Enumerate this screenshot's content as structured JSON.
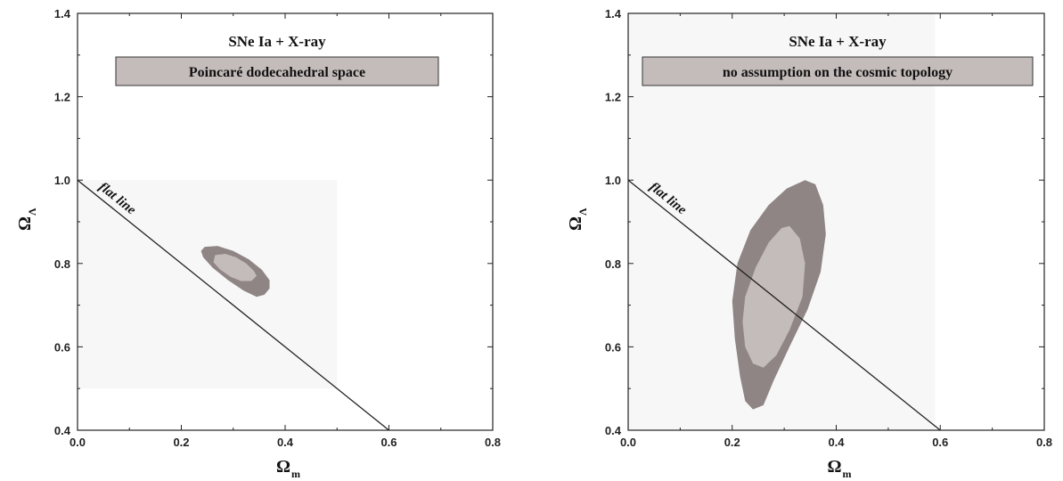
{
  "chart_data": [
    {
      "type": "contour",
      "title": "SNe Ia + X-ray",
      "box_label": "Poincaré dodecahedral space",
      "xlabel": "Ω",
      "xlabel_sub": "m",
      "ylabel": "Ω",
      "ylabel_sub": "Λ",
      "xlim": [
        0.0,
        0.8
      ],
      "ylim": [
        0.4,
        1.4
      ],
      "xticks": [
        "0.0",
        "0.2",
        "0.4",
        "0.6",
        "0.8"
      ],
      "yticks": [
        "0.4",
        "0.6",
        "0.8",
        "1.0",
        "1.2",
        "1.4"
      ],
      "prior_region": {
        "x": [
          0.0,
          0.5
        ],
        "y": [
          0.5,
          1.0
        ]
      },
      "flat_line": {
        "label": "flat line",
        "points": [
          [
            0.0,
            1.0
          ],
          [
            0.6,
            0.4
          ]
        ]
      },
      "contours": [
        {
          "level": "outer",
          "color": "#8f8585",
          "points": [
            [
              0.245,
              0.84
            ],
            [
              0.27,
              0.842
            ],
            [
              0.3,
              0.83
            ],
            [
              0.33,
              0.81
            ],
            [
              0.355,
              0.785
            ],
            [
              0.37,
              0.76
            ],
            [
              0.37,
              0.74
            ],
            [
              0.36,
              0.725
            ],
            [
              0.345,
              0.72
            ],
            [
              0.32,
              0.735
            ],
            [
              0.29,
              0.76
            ],
            [
              0.26,
              0.79
            ],
            [
              0.242,
              0.815
            ],
            [
              0.238,
              0.83
            ]
          ]
        },
        {
          "level": "inner",
          "color": "#c4bcbb",
          "points": [
            [
              0.265,
              0.82
            ],
            [
              0.285,
              0.823
            ],
            [
              0.305,
              0.815
            ],
            [
              0.325,
              0.8
            ],
            [
              0.34,
              0.782
            ],
            [
              0.345,
              0.77
            ],
            [
              0.335,
              0.758
            ],
            [
              0.315,
              0.758
            ],
            [
              0.295,
              0.768
            ],
            [
              0.275,
              0.785
            ],
            [
              0.262,
              0.803
            ]
          ]
        }
      ]
    },
    {
      "type": "contour",
      "title": "SNe Ia + X-ray",
      "box_label": "no assumption on the cosmic topology",
      "xlabel": "Ω",
      "xlabel_sub": "m",
      "ylabel": "Ω",
      "ylabel_sub": "Λ",
      "xlim": [
        0.0,
        0.8
      ],
      "ylim": [
        0.4,
        1.4
      ],
      "xticks": [
        "0.0",
        "0.2",
        "0.4",
        "0.6",
        "0.8"
      ],
      "yticks": [
        "0.4",
        "0.6",
        "0.8",
        "1.0",
        "1.2",
        "1.4"
      ],
      "prior_region": {
        "x": [
          0.0,
          0.59
        ],
        "y": [
          0.4,
          1.4
        ]
      },
      "flat_line": {
        "label": "flat line",
        "points": [
          [
            0.0,
            1.0
          ],
          [
            0.6,
            0.4
          ]
        ]
      },
      "contours": [
        {
          "level": "outer",
          "color": "#8f8585",
          "points": [
            [
              0.34,
              1.0
            ],
            [
              0.36,
              0.99
            ],
            [
              0.375,
              0.94
            ],
            [
              0.38,
              0.87
            ],
            [
              0.37,
              0.78
            ],
            [
              0.345,
              0.69
            ],
            [
              0.31,
              0.6
            ],
            [
              0.28,
              0.52
            ],
            [
              0.26,
              0.46
            ],
            [
              0.24,
              0.45
            ],
            [
              0.225,
              0.47
            ],
            [
              0.215,
              0.53
            ],
            [
              0.205,
              0.62
            ],
            [
              0.2,
              0.71
            ],
            [
              0.21,
              0.8
            ],
            [
              0.235,
              0.88
            ],
            [
              0.27,
              0.94
            ],
            [
              0.305,
              0.98
            ]
          ]
        },
        {
          "level": "inner",
          "color": "#c4bcbb",
          "points": [
            [
              0.31,
              0.89
            ],
            [
              0.33,
              0.86
            ],
            [
              0.34,
              0.8
            ],
            [
              0.335,
              0.72
            ],
            [
              0.31,
              0.64
            ],
            [
              0.285,
              0.58
            ],
            [
              0.26,
              0.55
            ],
            [
              0.24,
              0.56
            ],
            [
              0.225,
              0.6
            ],
            [
              0.22,
              0.66
            ],
            [
              0.225,
              0.72
            ],
            [
              0.245,
              0.79
            ],
            [
              0.27,
              0.85
            ],
            [
              0.295,
              0.885
            ]
          ]
        }
      ]
    }
  ]
}
